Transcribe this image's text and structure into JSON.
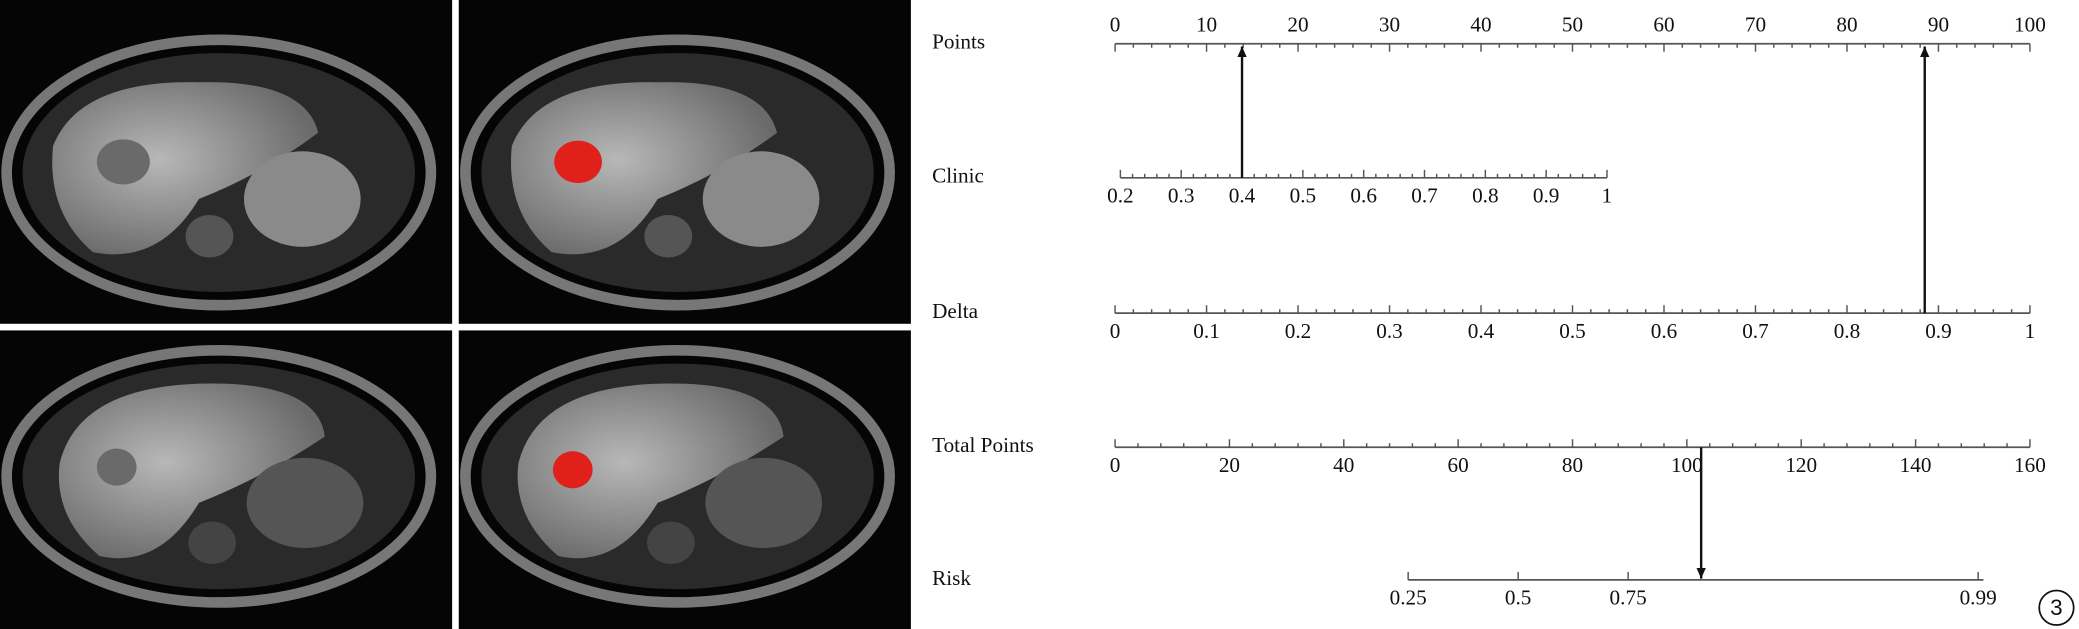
{
  "nomogram": {
    "rows": [
      {
        "label": "Points",
        "ticks": [
          0,
          10,
          20,
          30,
          40,
          50,
          60,
          70,
          80,
          90,
          100
        ]
      },
      {
        "label": "Clinic",
        "ticks": [
          0.2,
          0.3,
          0.4,
          0.5,
          0.6,
          0.7,
          0.8,
          0.9,
          1
        ],
        "marker": 0.4
      },
      {
        "label": "Delta",
        "ticks": [
          0,
          0.1,
          0.2,
          0.3,
          0.4,
          0.5,
          0.6,
          0.7,
          0.8,
          0.9,
          1
        ],
        "marker": 0.885
      },
      {
        "label": "Total Points",
        "ticks": [
          0,
          20,
          40,
          60,
          80,
          100,
          120,
          140,
          160
        ],
        "marker": 102.5
      },
      {
        "label": "Risk",
        "ticks": [
          0.25,
          0.5,
          0.75,
          0.99
        ]
      }
    ]
  },
  "panel_label": "3"
}
